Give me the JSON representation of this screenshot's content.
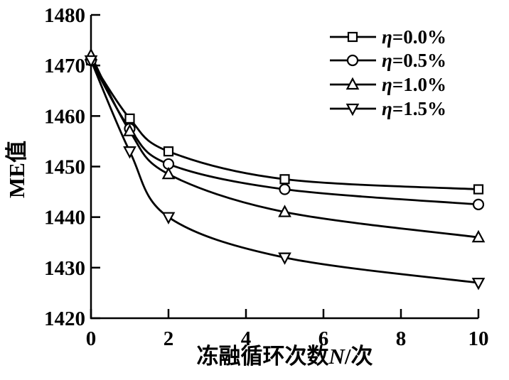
{
  "figure": {
    "background": "#ffffff",
    "line_color": "#000000",
    "marker_fill": "#ffffff"
  },
  "chart_data": {
    "type": "line",
    "title": "",
    "x": [
      0,
      1,
      2,
      5,
      10
    ],
    "series": [
      {
        "name": "η=0.0%",
        "marker": "square",
        "values": [
          1471,
          1459.5,
          1453,
          1447.5,
          1445.5
        ]
      },
      {
        "name": "η=0.5%",
        "marker": "circle",
        "values": [
          1471,
          1457.5,
          1450.5,
          1445.5,
          1442.5
        ]
      },
      {
        "name": "η=1.0%",
        "marker": "triangle-up",
        "values": [
          1472,
          1457,
          1448.5,
          1441,
          1436
        ]
      },
      {
        "name": "η=1.5%",
        "marker": "triangle-down",
        "values": [
          1471,
          1453,
          1440,
          1432,
          1427
        ]
      }
    ],
    "xlabel": "冻融循环次数N/次",
    "xlabel_parts": [
      {
        "text": "冻融循环次数",
        "italic": false
      },
      {
        "text": "N",
        "italic": true
      },
      {
        "text": "/次",
        "italic": false
      }
    ],
    "ylabel": "ME值",
    "xlim": [
      0,
      10
    ],
    "ylim": [
      1420,
      1480
    ],
    "xticks": [
      0,
      2,
      4,
      6,
      8,
      10
    ],
    "yticks": [
      1420,
      1430,
      1440,
      1450,
      1460,
      1470,
      1480
    ],
    "grid": false,
    "legend_position": "top-right"
  }
}
